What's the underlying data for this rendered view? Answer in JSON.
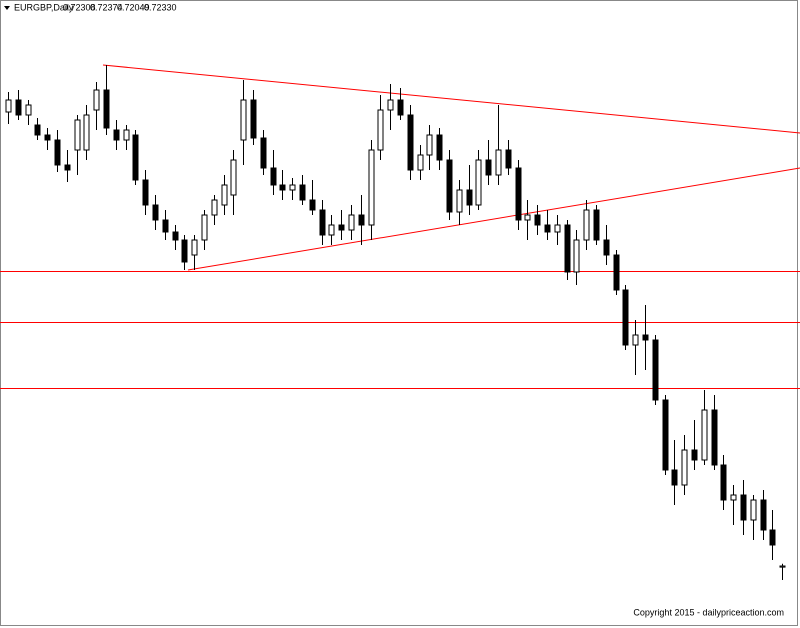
{
  "chart_data": {
    "type": "candlestick",
    "title": "EURGBP,Daily",
    "ohlc_label": [
      "0.72308",
      "0.72374",
      "0.72049",
      "0.72330"
    ],
    "open": [
      0.8141,
      0.8165,
      0.8135,
      0.8115,
      0.8095,
      0.8085,
      0.8035,
      0.8065,
      0.8065,
      0.8145,
      0.8185,
      0.8105,
      0.8085,
      0.8095,
      0.8005,
      0.7955,
      0.7925,
      0.7901,
      0.7885,
      0.7855,
      0.7885,
      0.7935,
      0.7955,
      0.7975,
      0.8085,
      0.8165,
      0.8089,
      0.8029,
      0.7995,
      0.7985,
      0.7995,
      0.7965,
      0.7945,
      0.7895,
      0.7915,
      0.7905,
      0.7935,
      0.7915,
      0.8065,
      0.8145,
      0.8165,
      0.8135,
      0.8025,
      0.8055,
      0.8095,
      0.8045,
      0.7941,
      0.7985,
      0.7955,
      0.8045,
      0.8015,
      0.8065,
      0.8029,
      0.7925,
      0.7935,
      0.7915,
      0.7901,
      0.7915,
      0.7821,
      0.7885,
      0.7945,
      0.7885,
      0.7855,
      0.7785,
      0.7675,
      0.7695,
      0.7685,
      0.7565,
      0.7425,
      0.7395,
      0.7465,
      0.7445,
      0.7545,
      0.7435,
      0.7365,
      0.7375,
      0.7325,
      0.7365,
      0.7305,
      0.72308
    ],
    "high": [
      0.8181,
      0.8185,
      0.8165,
      0.8129,
      0.8109,
      0.8105,
      0.8065,
      0.8135,
      0.8155,
      0.8201,
      0.8235,
      0.8125,
      0.8115,
      0.8105,
      0.8025,
      0.7975,
      0.7945,
      0.7915,
      0.7895,
      0.7895,
      0.7945,
      0.7975,
      0.8015,
      0.8065,
      0.8205,
      0.8185,
      0.8105,
      0.8065,
      0.8025,
      0.8009,
      0.8015,
      0.8005,
      0.7965,
      0.7935,
      0.7945,
      0.7955,
      0.7975,
      0.8085,
      0.8175,
      0.8197,
      0.8189,
      0.8155,
      0.8075,
      0.8115,
      0.8109,
      0.8065,
      0.8005,
      0.8035,
      0.8065,
      0.8085,
      0.8155,
      0.8085,
      0.8045,
      0.7965,
      0.7955,
      0.7945,
      0.7935,
      0.7925,
      0.7905,
      0.7965,
      0.7955,
      0.7915,
      0.7865,
      0.7795,
      0.7725,
      0.7755,
      0.7695,
      0.7575,
      0.7485,
      0.7495,
      0.7525,
      0.7585,
      0.7575,
      0.7455,
      0.7395,
      0.7405,
      0.7375,
      0.7385,
      0.7345,
      0.72374
    ],
    "low": [
      0.8117,
      0.8125,
      0.8115,
      0.8085,
      0.8065,
      0.8021,
      0.8001,
      0.8015,
      0.8045,
      0.8105,
      0.8095,
      0.8065,
      0.8065,
      0.7995,
      0.7935,
      0.7905,
      0.7885,
      0.7865,
      0.7825,
      0.7825,
      0.7865,
      0.7915,
      0.7935,
      0.7935,
      0.8035,
      0.8075,
      0.8015,
      0.7975,
      0.7965,
      0.7965,
      0.7955,
      0.7935,
      0.7875,
      0.7875,
      0.7885,
      0.7885,
      0.7875,
      0.7885,
      0.8045,
      0.8105,
      0.8125,
      0.8005,
      0.8005,
      0.8025,
      0.8025,
      0.7925,
      0.7915,
      0.7935,
      0.7945,
      0.7995,
      0.7995,
      0.8015,
      0.7905,
      0.7885,
      0.7895,
      0.7885,
      0.7875,
      0.7805,
      0.7795,
      0.7865,
      0.7875,
      0.7835,
      0.7775,
      0.7665,
      0.7615,
      0.7625,
      0.7555,
      0.7415,
      0.7355,
      0.7375,
      0.7425,
      0.7435,
      0.7425,
      0.7345,
      0.7315,
      0.7295,
      0.7285,
      0.7285,
      0.7245,
      0.72049
    ],
    "close": [
      0.8165,
      0.8135,
      0.8155,
      0.8095,
      0.8085,
      0.8035,
      0.8025,
      0.8125,
      0.8135,
      0.8185,
      0.8109,
      0.8085,
      0.8105,
      0.8005,
      0.7955,
      0.7925,
      0.7901,
      0.7885,
      0.7841,
      0.7885,
      0.7935,
      0.7965,
      0.7995,
      0.8045,
      0.8165,
      0.8089,
      0.8029,
      0.7995,
      0.7985,
      0.7995,
      0.7965,
      0.7945,
      0.7895,
      0.7915,
      0.7905,
      0.7935,
      0.7915,
      0.8065,
      0.8145,
      0.8165,
      0.8135,
      0.8025,
      0.8055,
      0.8095,
      0.8045,
      0.7941,
      0.7985,
      0.7955,
      0.8045,
      0.8015,
      0.8065,
      0.8029,
      0.7925,
      0.7935,
      0.7915,
      0.7901,
      0.7915,
      0.7821,
      0.7885,
      0.7945,
      0.7885,
      0.7855,
      0.7785,
      0.7675,
      0.7695,
      0.7685,
      0.7565,
      0.7425,
      0.7395,
      0.7465,
      0.7445,
      0.7545,
      0.7435,
      0.7365,
      0.7375,
      0.7325,
      0.7365,
      0.7305,
      0.7275,
      0.7233
    ],
    "ylim": [
      0.7109,
      0.8365
    ],
    "hlines": [
      0.7823,
      0.7721,
      0.7589
    ],
    "hline_color": "#ff0000",
    "up_color": "#ffffff",
    "down_color": "#000000"
  },
  "footer": "Copyright 2015 - dailypriceaction.com"
}
